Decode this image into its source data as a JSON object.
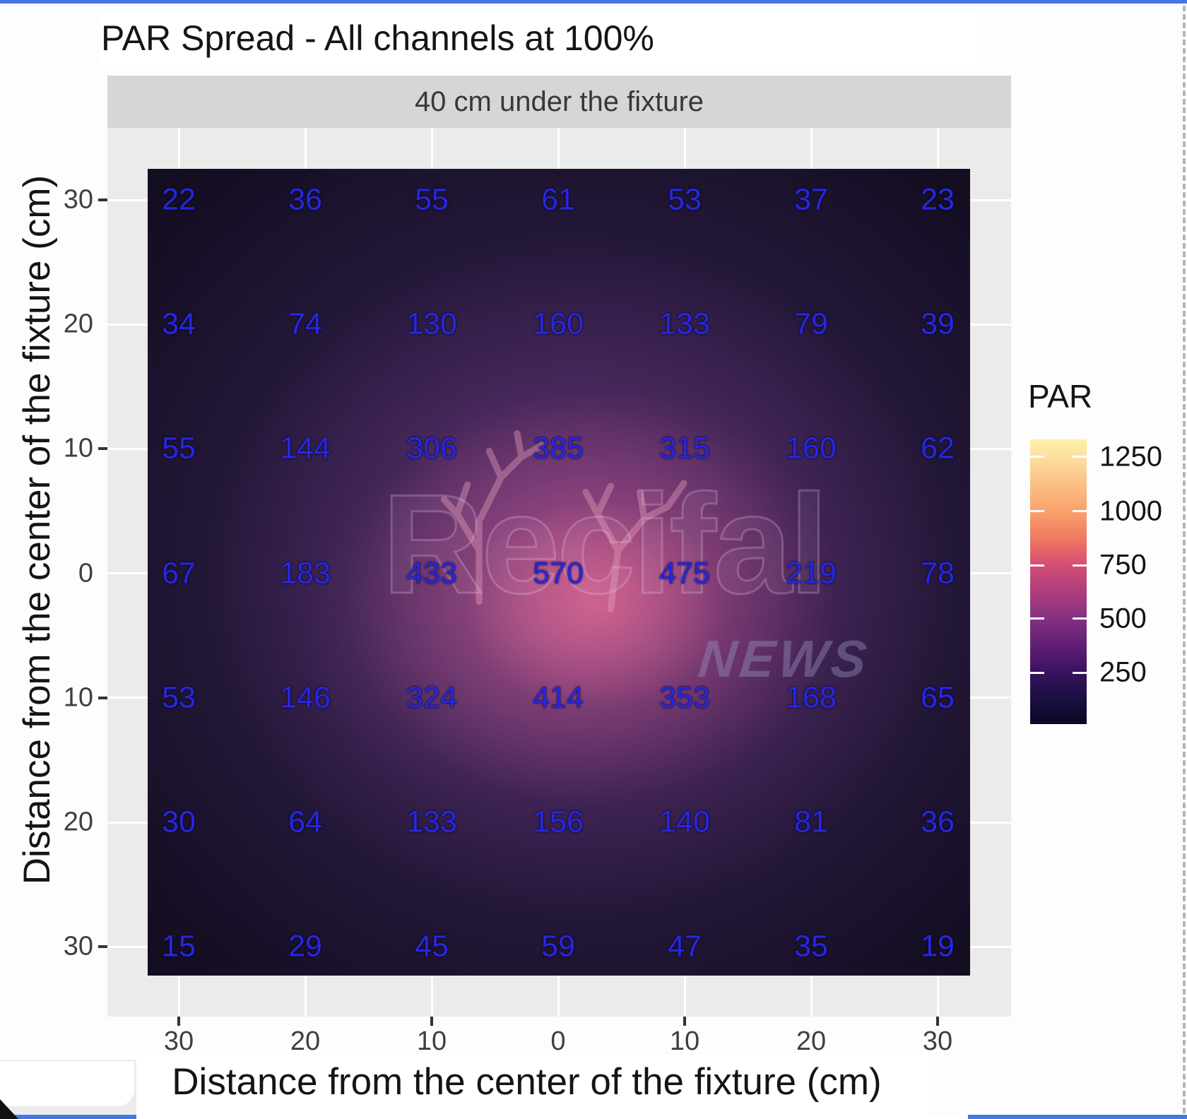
{
  "frame": {
    "accent_color": "#4478e0",
    "selection_edge_color": "#b5b5b5"
  },
  "chart": {
    "title": "PAR Spread - All channels at 100%",
    "facet_label": "40 cm under the fixture",
    "x_axis_title": "Distance from the center of the fixture (cm)",
    "y_axis_title": "Distance from the center of the fixture (cm)"
  },
  "watermark": {
    "word": "Recifal",
    "subword": "NEWS"
  },
  "legend": {
    "title": "PAR"
  },
  "chart_data": {
    "type": "heatmap",
    "title": "PAR Spread - All channels at 100%",
    "facet": "40 cm under the fixture",
    "xlabel": "Distance from the center of the fixture (cm)",
    "ylabel": "Distance from the center of the fixture (cm)",
    "x_tick_labels": [
      "30",
      "20",
      "10",
      "0",
      "10",
      "20",
      "30"
    ],
    "y_tick_labels": [
      "30",
      "20",
      "10",
      "0",
      "10",
      "20",
      "30"
    ],
    "values": [
      [
        22,
        36,
        55,
        61,
        53,
        37,
        23
      ],
      [
        34,
        74,
        130,
        160,
        133,
        79,
        39
      ],
      [
        55,
        144,
        306,
        385,
        315,
        160,
        62
      ],
      [
        67,
        183,
        433,
        570,
        475,
        219,
        78
      ],
      [
        53,
        146,
        324,
        414,
        353,
        168,
        65
      ],
      [
        30,
        64,
        133,
        156,
        140,
        81,
        36
      ],
      [
        15,
        29,
        45,
        59,
        47,
        35,
        19
      ]
    ],
    "value_label_color": "#2727e0",
    "colormap": "magma",
    "legend_title": "PAR",
    "legend_ticks": [
      1250,
      1000,
      750,
      500,
      250
    ],
    "grid": true,
    "panel_color": "#ebebeb"
  }
}
